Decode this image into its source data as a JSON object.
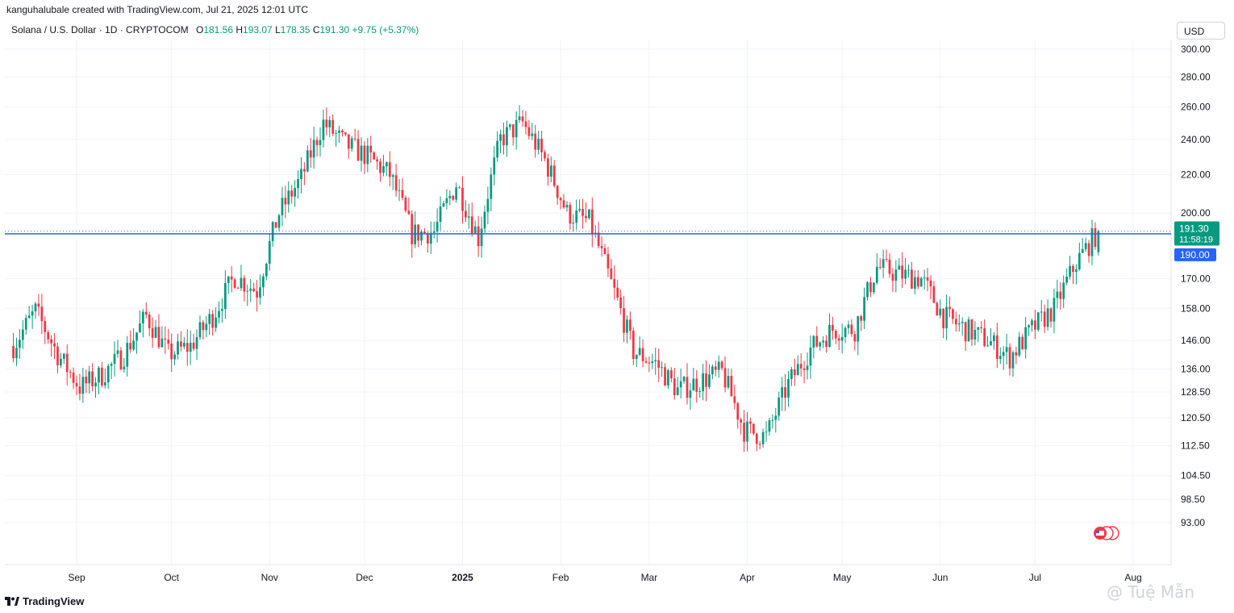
{
  "header": {
    "credit": "kanguhalubale created with TradingView.com, Jul 21, 2025 12:01 UTC",
    "symbol": "Solana / U.S. Dollar · 1D · CRYPTOCOM",
    "o_label": "O",
    "o_value": "181.56",
    "h_label": "H",
    "h_value": "193.07",
    "l_label": "L",
    "l_value": "178.35",
    "c_label": "C",
    "c_value": "191.30",
    "change": "+9.75 (+5.37%)",
    "currency": "USD"
  },
  "footer": {
    "logo_text": "TradingView",
    "watermark": "@ Tuệ Mẫn"
  },
  "colors": {
    "up": "#089981",
    "down": "#f23645",
    "hline": "#2962ff",
    "grid": "#f0f3fa"
  },
  "chart_data": {
    "type": "candlestick",
    "y_scale": "log",
    "y_ticks": [
      300.0,
      280.0,
      260.0,
      240.0,
      220.0,
      200.0,
      170.0,
      158.0,
      146.0,
      136.0,
      128.5,
      120.5,
      112.5,
      104.5,
      98.5,
      93.0
    ],
    "y_tick_labels": [
      "300.00",
      "280.00",
      "260.00",
      "240.00",
      "220.00",
      "200.00",
      "170.00",
      "158.00",
      "146.00",
      "136.00",
      "128.50",
      "120.50",
      "112.50",
      "104.50",
      "98.50",
      "93.00"
    ],
    "x_ticks": [
      {
        "label": "Sep",
        "date": "2024-09-01",
        "bold": false
      },
      {
        "label": "Oct",
        "date": "2024-10-01",
        "bold": false
      },
      {
        "label": "Nov",
        "date": "2024-11-01",
        "bold": false
      },
      {
        "label": "Dec",
        "date": "2024-12-01",
        "bold": false
      },
      {
        "label": "2025",
        "date": "2025-01-01",
        "bold": true
      },
      {
        "label": "Feb",
        "date": "2025-02-01",
        "bold": false
      },
      {
        "label": "Mar",
        "date": "2025-03-01",
        "bold": false
      },
      {
        "label": "Apr",
        "date": "2025-04-01",
        "bold": false
      },
      {
        "label": "May",
        "date": "2025-05-01",
        "bold": false
      },
      {
        "label": "Jun",
        "date": "2025-06-01",
        "bold": false
      },
      {
        "label": "Jul",
        "date": "2025-07-01",
        "bold": false
      },
      {
        "label": "Aug",
        "date": "2025-08-01",
        "bold": false
      }
    ],
    "horizontal_line": {
      "value": 190.0,
      "label": "190.00"
    },
    "last_price": {
      "value": 191.3,
      "label": "191.30",
      "countdown": "11:58:19"
    },
    "closes_by_week": [
      {
        "week": "2024-08-12",
        "close": 144
      },
      {
        "week": "2024-08-19",
        "close": 157
      },
      {
        "week": "2024-08-26",
        "close": 141
      },
      {
        "week": "2024-09-02",
        "close": 130
      },
      {
        "week": "2024-09-09",
        "close": 134
      },
      {
        "week": "2024-09-16",
        "close": 141
      },
      {
        "week": "2024-09-23",
        "close": 155
      },
      {
        "week": "2024-09-30",
        "close": 141
      },
      {
        "week": "2024-10-07",
        "close": 144
      },
      {
        "week": "2024-10-14",
        "close": 155
      },
      {
        "week": "2024-10-21",
        "close": 171
      },
      {
        "week": "2024-10-28",
        "close": 165
      },
      {
        "week": "2024-11-04",
        "close": 200
      },
      {
        "week": "2024-11-11",
        "close": 218
      },
      {
        "week": "2024-11-18",
        "close": 250
      },
      {
        "week": "2024-11-25",
        "close": 237
      },
      {
        "week": "2024-12-02",
        "close": 230
      },
      {
        "week": "2024-12-09",
        "close": 220
      },
      {
        "week": "2024-12-16",
        "close": 190
      },
      {
        "week": "2024-12-23",
        "close": 191
      },
      {
        "week": "2024-12-30",
        "close": 215
      },
      {
        "week": "2025-01-06",
        "close": 188
      },
      {
        "week": "2025-01-13",
        "close": 240
      },
      {
        "week": "2025-01-20",
        "close": 250
      },
      {
        "week": "2025-01-27",
        "close": 228
      },
      {
        "week": "2025-02-03",
        "close": 200
      },
      {
        "week": "2025-02-10",
        "close": 196
      },
      {
        "week": "2025-02-17",
        "close": 168
      },
      {
        "week": "2025-02-24",
        "close": 142
      },
      {
        "week": "2025-03-03",
        "close": 138
      },
      {
        "week": "2025-03-10",
        "close": 129
      },
      {
        "week": "2025-03-17",
        "close": 132
      },
      {
        "week": "2025-03-24",
        "close": 135
      },
      {
        "week": "2025-03-31",
        "close": 117
      },
      {
        "week": "2025-04-07",
        "close": 115
      },
      {
        "week": "2025-04-14",
        "close": 131
      },
      {
        "week": "2025-04-21",
        "close": 143
      },
      {
        "week": "2025-04-28",
        "close": 150
      },
      {
        "week": "2025-05-05",
        "close": 150
      },
      {
        "week": "2025-05-12",
        "close": 175
      },
      {
        "week": "2025-05-19",
        "close": 172
      },
      {
        "week": "2025-05-26",
        "close": 170
      },
      {
        "week": "2025-06-02",
        "close": 155
      },
      {
        "week": "2025-06-09",
        "close": 150
      },
      {
        "week": "2025-06-16",
        "close": 146
      },
      {
        "week": "2025-06-23",
        "close": 140
      },
      {
        "week": "2025-06-30",
        "close": 150
      },
      {
        "week": "2025-07-07",
        "close": 158
      },
      {
        "week": "2025-07-14",
        "close": 177
      },
      {
        "week": "2025-07-21",
        "close": 191.3
      }
    ]
  }
}
